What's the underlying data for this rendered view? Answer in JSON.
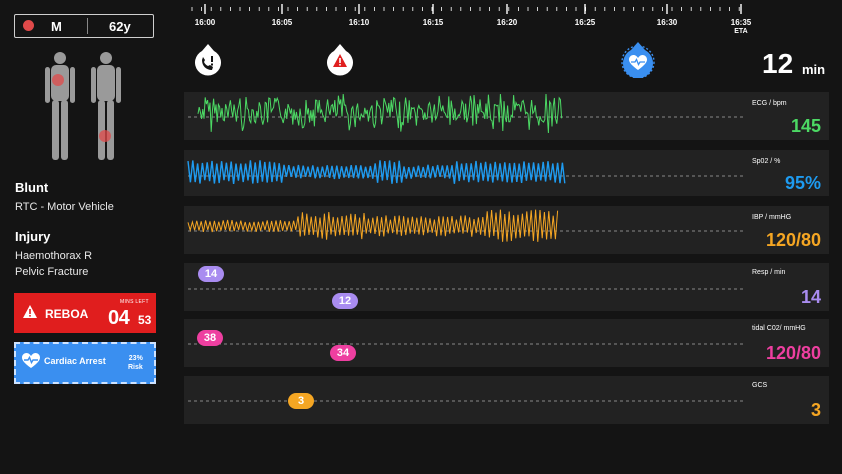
{
  "patient": {
    "sex": "M",
    "age": "62y"
  },
  "mechanism": {
    "title": "Blunt",
    "detail": "RTC - Motor Vehicle"
  },
  "injury": {
    "title": "Injury",
    "items": [
      "Haemothorax R",
      "Pelvic Fracture"
    ]
  },
  "reboa": {
    "label": "REBOA",
    "mins_left_label": "MINS LEFT",
    "time_big": "04",
    "time_small": "53",
    "color": "#e01e1e"
  },
  "cardiac": {
    "label": "Cardiac Arrest",
    "percent": "23%",
    "risk": "Risk",
    "color": "#3a8ff0"
  },
  "timeline": {
    "ticks": [
      "16:00",
      "16:05",
      "16:10",
      "16:15",
      "16:20",
      "16:25",
      "16:30",
      "16:35"
    ],
    "eta_label": "ETA"
  },
  "eta": {
    "value": "12",
    "unit": "min"
  },
  "events": [
    {
      "icon": "phone-alert-icon"
    },
    {
      "icon": "warning-drop-icon"
    },
    {
      "icon": "heart-badge-icon"
    }
  ],
  "vitals": {
    "ecg": {
      "label": "ECG / bpm",
      "value": "145",
      "color": "#4cd964"
    },
    "spo2": {
      "label": "Sp02 / %",
      "value": "95%",
      "color": "#1e9bf0"
    },
    "ibp": {
      "label": "IBP / mmHG",
      "value": "120/80",
      "color": "#f5a623"
    },
    "resp": {
      "label": "Resp / min",
      "value": "14",
      "color": "#a98cf0",
      "bubbles": [
        "14",
        "12"
      ]
    },
    "co2": {
      "label": "tidal C02/ mmHG",
      "value": "120/80",
      "color": "#ee3fa0",
      "bubbles": [
        "38",
        "34"
      ]
    },
    "gcs": {
      "label": "GCS",
      "value": "3",
      "color": "#f5a623",
      "bubbles": [
        "3"
      ]
    }
  }
}
